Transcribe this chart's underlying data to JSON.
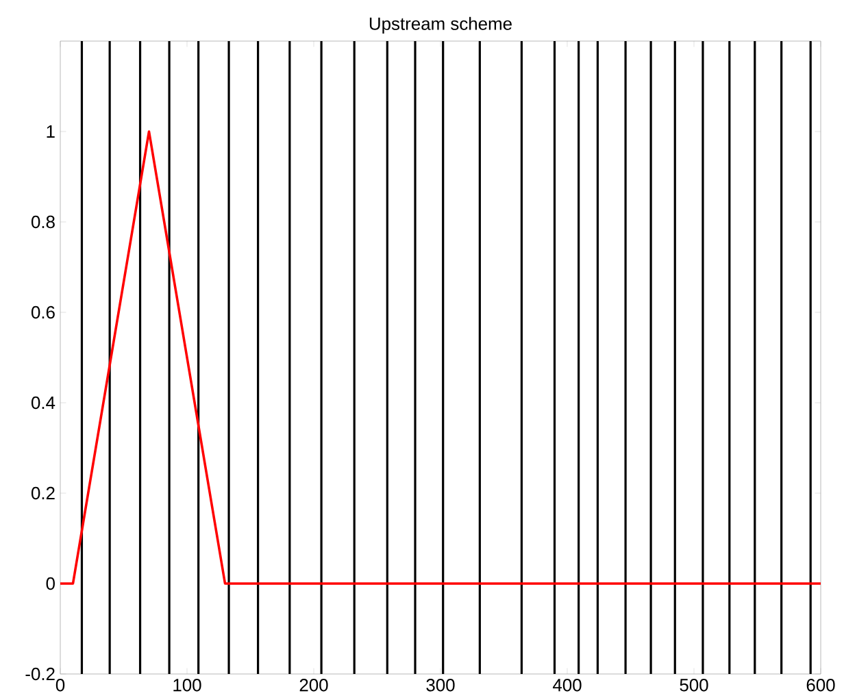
{
  "chart_data": {
    "type": "line",
    "title": "Upstream scheme",
    "x": [
      0,
      10,
      70,
      130,
      600
    ],
    "series": [
      {
        "color": "#ff0000",
        "values": [
          0,
          0,
          1,
          0,
          0
        ]
      }
    ],
    "xlim": [
      0,
      600
    ],
    "xticks": [
      0,
      100,
      200,
      300,
      400,
      500,
      600
    ],
    "ylim": [
      -0.2,
      1.2
    ],
    "yticks": [
      -0.2,
      0,
      0.2,
      0.4,
      0.6,
      0.8,
      1
    ],
    "marker": "none",
    "line_style": "solid",
    "ref_lines": [
      {
        "axis": "x",
        "value": 17,
        "color": "#000000"
      },
      {
        "axis": "x",
        "value": 39,
        "color": "#000000"
      },
      {
        "axis": "x",
        "value": 63,
        "color": "#000000"
      },
      {
        "axis": "x",
        "value": 86,
        "color": "#000000"
      },
      {
        "axis": "x",
        "value": 109,
        "color": "#000000"
      },
      {
        "axis": "x",
        "value": 133,
        "color": "#000000"
      },
      {
        "axis": "x",
        "value": 156,
        "color": "#000000"
      },
      {
        "axis": "x",
        "value": 181,
        "color": "#000000"
      },
      {
        "axis": "x",
        "value": 206,
        "color": "#000000"
      },
      {
        "axis": "x",
        "value": 232,
        "color": "#000000"
      },
      {
        "axis": "x",
        "value": 258,
        "color": "#000000"
      },
      {
        "axis": "x",
        "value": 280,
        "color": "#000000"
      },
      {
        "axis": "x",
        "value": 302,
        "color": "#000000"
      },
      {
        "axis": "x",
        "value": 331,
        "color": "#000000"
      },
      {
        "axis": "x",
        "value": 364,
        "color": "#000000"
      },
      {
        "axis": "x",
        "value": 390,
        "color": "#000000"
      },
      {
        "axis": "x",
        "value": 409,
        "color": "#000000"
      },
      {
        "axis": "x",
        "value": 424,
        "color": "#000000"
      },
      {
        "axis": "x",
        "value": 446,
        "color": "#000000"
      },
      {
        "axis": "x",
        "value": 466,
        "color": "#000000"
      },
      {
        "axis": "x",
        "value": 485,
        "color": "#000000"
      },
      {
        "axis": "x",
        "value": 507,
        "color": "#000000"
      },
      {
        "axis": "x",
        "value": 528,
        "color": "#000000"
      },
      {
        "axis": "x",
        "value": 548,
        "color": "#000000"
      },
      {
        "axis": "x",
        "value": 569,
        "color": "#000000"
      },
      {
        "axis": "x",
        "value": 592,
        "color": "#000000"
      }
    ]
  }
}
